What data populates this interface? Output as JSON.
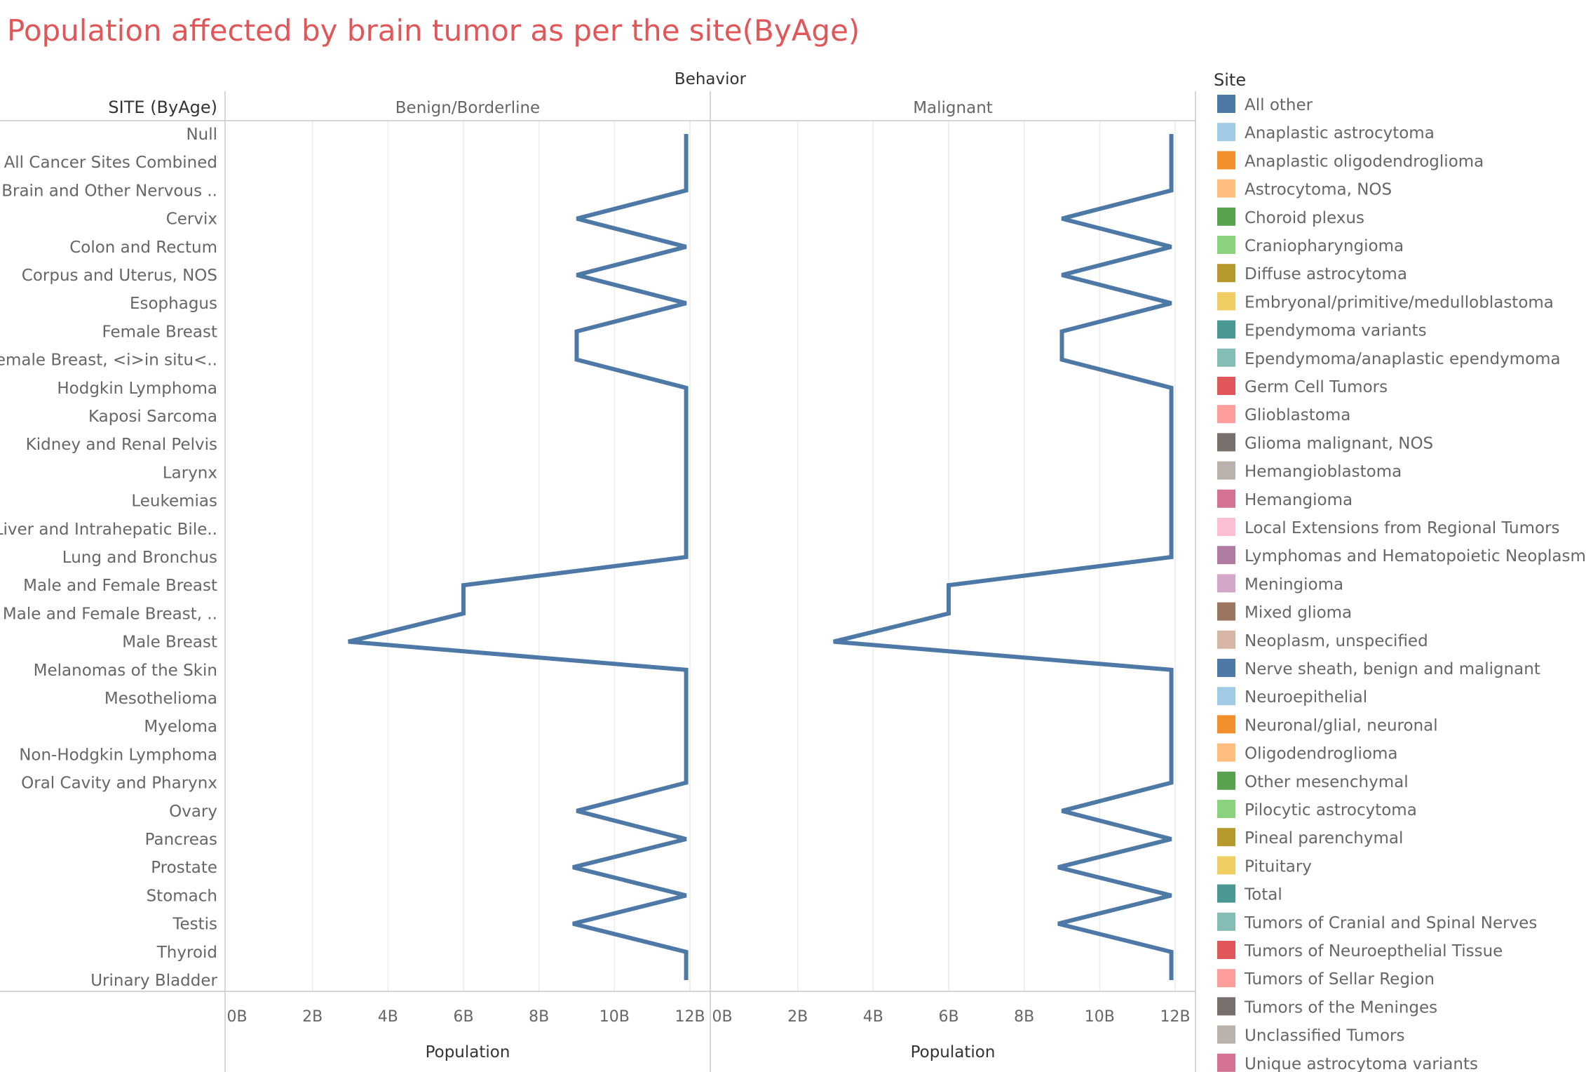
{
  "chart_data": {
    "type": "line",
    "title": "Population affected by brain tumor as per the site(ByAge)",
    "column_header": "Behavior",
    "row_header": "SITE (ByAge)",
    "panels": [
      "Benign/Borderline",
      "Malignant"
    ],
    "xlabel": "Population",
    "xticks": [
      "0B",
      "2B",
      "4B",
      "6B",
      "8B",
      "10B",
      "12B"
    ],
    "xlim": [
      0,
      12
    ],
    "x_unit": "billions",
    "categories": [
      "Null",
      "All Cancer Sites Combined",
      "Brain and Other Nervous ..",
      "Cervix",
      "Colon and Rectum",
      "Corpus and Uterus, NOS",
      "Esophagus",
      "Female Breast",
      "Female Breast, <i>in situ<..",
      "Hodgkin Lymphoma",
      "Kaposi Sarcoma",
      "Kidney and Renal Pelvis",
      "Larynx",
      "Leukemias",
      "Liver and Intrahepatic Bile..",
      "Lung and Bronchus",
      "Male and Female Breast",
      "Male and Female Breast, ..",
      "Male Breast",
      "Melanomas of the Skin",
      "Mesothelioma",
      "Myeloma",
      "Non-Hodgkin Lymphoma",
      "Oral Cavity and Pharynx",
      "Ovary",
      "Pancreas",
      "Prostate",
      "Stomach",
      "Testis",
      "Thyroid",
      "Urinary Bladder"
    ],
    "series": [
      {
        "panel": "Benign/Borderline",
        "color": "#4e79a7",
        "values": [
          11.9,
          11.9,
          11.9,
          9.0,
          11.9,
          9.0,
          11.9,
          9.0,
          9.0,
          11.9,
          11.9,
          11.9,
          11.9,
          11.9,
          11.9,
          11.9,
          6.0,
          6.0,
          2.95,
          11.9,
          11.9,
          11.9,
          11.9,
          11.9,
          9.0,
          11.9,
          8.9,
          11.9,
          8.9,
          11.9,
          11.9
        ]
      },
      {
        "panel": "Malignant",
        "color": "#4e79a7",
        "values": [
          11.9,
          11.9,
          11.9,
          9.0,
          11.9,
          9.0,
          11.9,
          9.0,
          9.0,
          11.9,
          11.9,
          11.9,
          11.9,
          11.9,
          11.9,
          11.9,
          6.0,
          6.0,
          2.95,
          11.9,
          11.9,
          11.9,
          11.9,
          11.9,
          9.0,
          11.9,
          8.9,
          11.9,
          8.9,
          11.9,
          11.9
        ]
      }
    ],
    "legend": {
      "title": "Site",
      "placement": "right",
      "items": [
        {
          "label": "All other",
          "color": "#4e79a7"
        },
        {
          "label": "Anaplastic astrocytoma",
          "color": "#a0cbe8"
        },
        {
          "label": "Anaplastic oligodendroglioma",
          "color": "#f28e2b"
        },
        {
          "label": "Astrocytoma, NOS",
          "color": "#ffbe7d"
        },
        {
          "label": "Choroid plexus",
          "color": "#59a14f"
        },
        {
          "label": "Craniopharyngioma",
          "color": "#8cd17d"
        },
        {
          "label": "Diffuse astrocytoma",
          "color": "#b6992d"
        },
        {
          "label": "Embryonal/primitive/medulloblastoma",
          "color": "#f1ce63"
        },
        {
          "label": "Ependymoma variants",
          "color": "#499894"
        },
        {
          "label": "Ependymoma/anaplastic ependymoma",
          "color": "#86bcb6"
        },
        {
          "label": "Germ Cell Tumors",
          "color": "#e15759"
        },
        {
          "label": "Glioblastoma",
          "color": "#ff9d9a"
        },
        {
          "label": "Glioma malignant, NOS",
          "color": "#79706e"
        },
        {
          "label": "Hemangioblastoma",
          "color": "#bab0ac"
        },
        {
          "label": "Hemangioma",
          "color": "#d37295"
        },
        {
          "label": "Local Extensions from Regional Tumors",
          "color": "#fabfd2"
        },
        {
          "label": "Lymphomas and Hematopoietic Neoplasms",
          "color": "#b07aa1"
        },
        {
          "label": "Meningioma",
          "color": "#d4a6c8"
        },
        {
          "label": "Mixed glioma",
          "color": "#9d7660"
        },
        {
          "label": "Neoplasm, unspecified",
          "color": "#d7b5a6"
        },
        {
          "label": "Nerve sheath, benign and malignant",
          "color": "#4e79a7"
        },
        {
          "label": "Neuroepithelial",
          "color": "#a0cbe8"
        },
        {
          "label": "Neuronal/glial, neuronal",
          "color": "#f28e2b"
        },
        {
          "label": "Oligodendroglioma",
          "color": "#ffbe7d"
        },
        {
          "label": "Other mesenchymal",
          "color": "#59a14f"
        },
        {
          "label": "Pilocytic astrocytoma",
          "color": "#8cd17d"
        },
        {
          "label": "Pineal parenchymal",
          "color": "#b6992d"
        },
        {
          "label": "Pituitary",
          "color": "#f1ce63"
        },
        {
          "label": "Total",
          "color": "#499894"
        },
        {
          "label": "Tumors of Cranial and Spinal Nerves",
          "color": "#86bcb6"
        },
        {
          "label": "Tumors of Neuroepthelial Tissue",
          "color": "#e15759"
        },
        {
          "label": "Tumors of Sellar Region",
          "color": "#ff9d9a"
        },
        {
          "label": "Tumors of the Meninges",
          "color": "#79706e"
        },
        {
          "label": "Unclassified Tumors",
          "color": "#bab0ac"
        },
        {
          "label": "Unique astrocytoma variants",
          "color": "#d37295"
        }
      ]
    },
    "colors": {
      "title": "#e15759",
      "axis": "#c8c8c8",
      "grid": "#ececec",
      "text": "#666666",
      "header": "#333333"
    }
  }
}
